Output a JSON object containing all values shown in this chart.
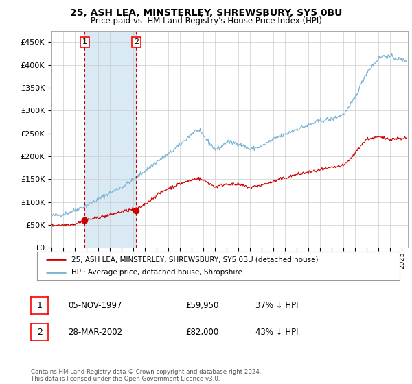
{
  "title": "25, ASH LEA, MINSTERLEY, SHREWSBURY, SY5 0BU",
  "subtitle": "Price paid vs. HM Land Registry's House Price Index (HPI)",
  "ylabel_ticks": [
    "£0",
    "£50K",
    "£100K",
    "£150K",
    "£200K",
    "£250K",
    "£300K",
    "£350K",
    "£400K",
    "£450K"
  ],
  "ytick_vals": [
    0,
    50000,
    100000,
    150000,
    200000,
    250000,
    300000,
    350000,
    400000,
    450000
  ],
  "ylim": [
    0,
    475000
  ],
  "xlim_start": 1995.0,
  "xlim_end": 2025.5,
  "purchase1_date": 1997.85,
  "purchase1_price": 59950,
  "purchase2_date": 2002.24,
  "purchase2_price": 82000,
  "legend_line1": "25, ASH LEA, MINSTERLEY, SHREWSBURY, SY5 0BU (detached house)",
  "legend_line2": "HPI: Average price, detached house, Shropshire",
  "table_row1": [
    "1",
    "05-NOV-1997",
    "£59,950",
    "37% ↓ HPI"
  ],
  "table_row2": [
    "2",
    "28-MAR-2002",
    "£82,000",
    "43% ↓ HPI"
  ],
  "footer": "Contains HM Land Registry data © Crown copyright and database right 2024.\nThis data is licensed under the Open Government Licence v3.0.",
  "hpi_color": "#7ab3d4",
  "price_color": "#cc0000",
  "shade_color": "#daeaf5",
  "dot_color": "#cc0000",
  "vline_color": "#cc0000",
  "background_color": "#ffffff",
  "grid_color": "#cccccc",
  "title_fontsize": 10,
  "subtitle_fontsize": 8.5,
  "tick_fontsize": 8
}
